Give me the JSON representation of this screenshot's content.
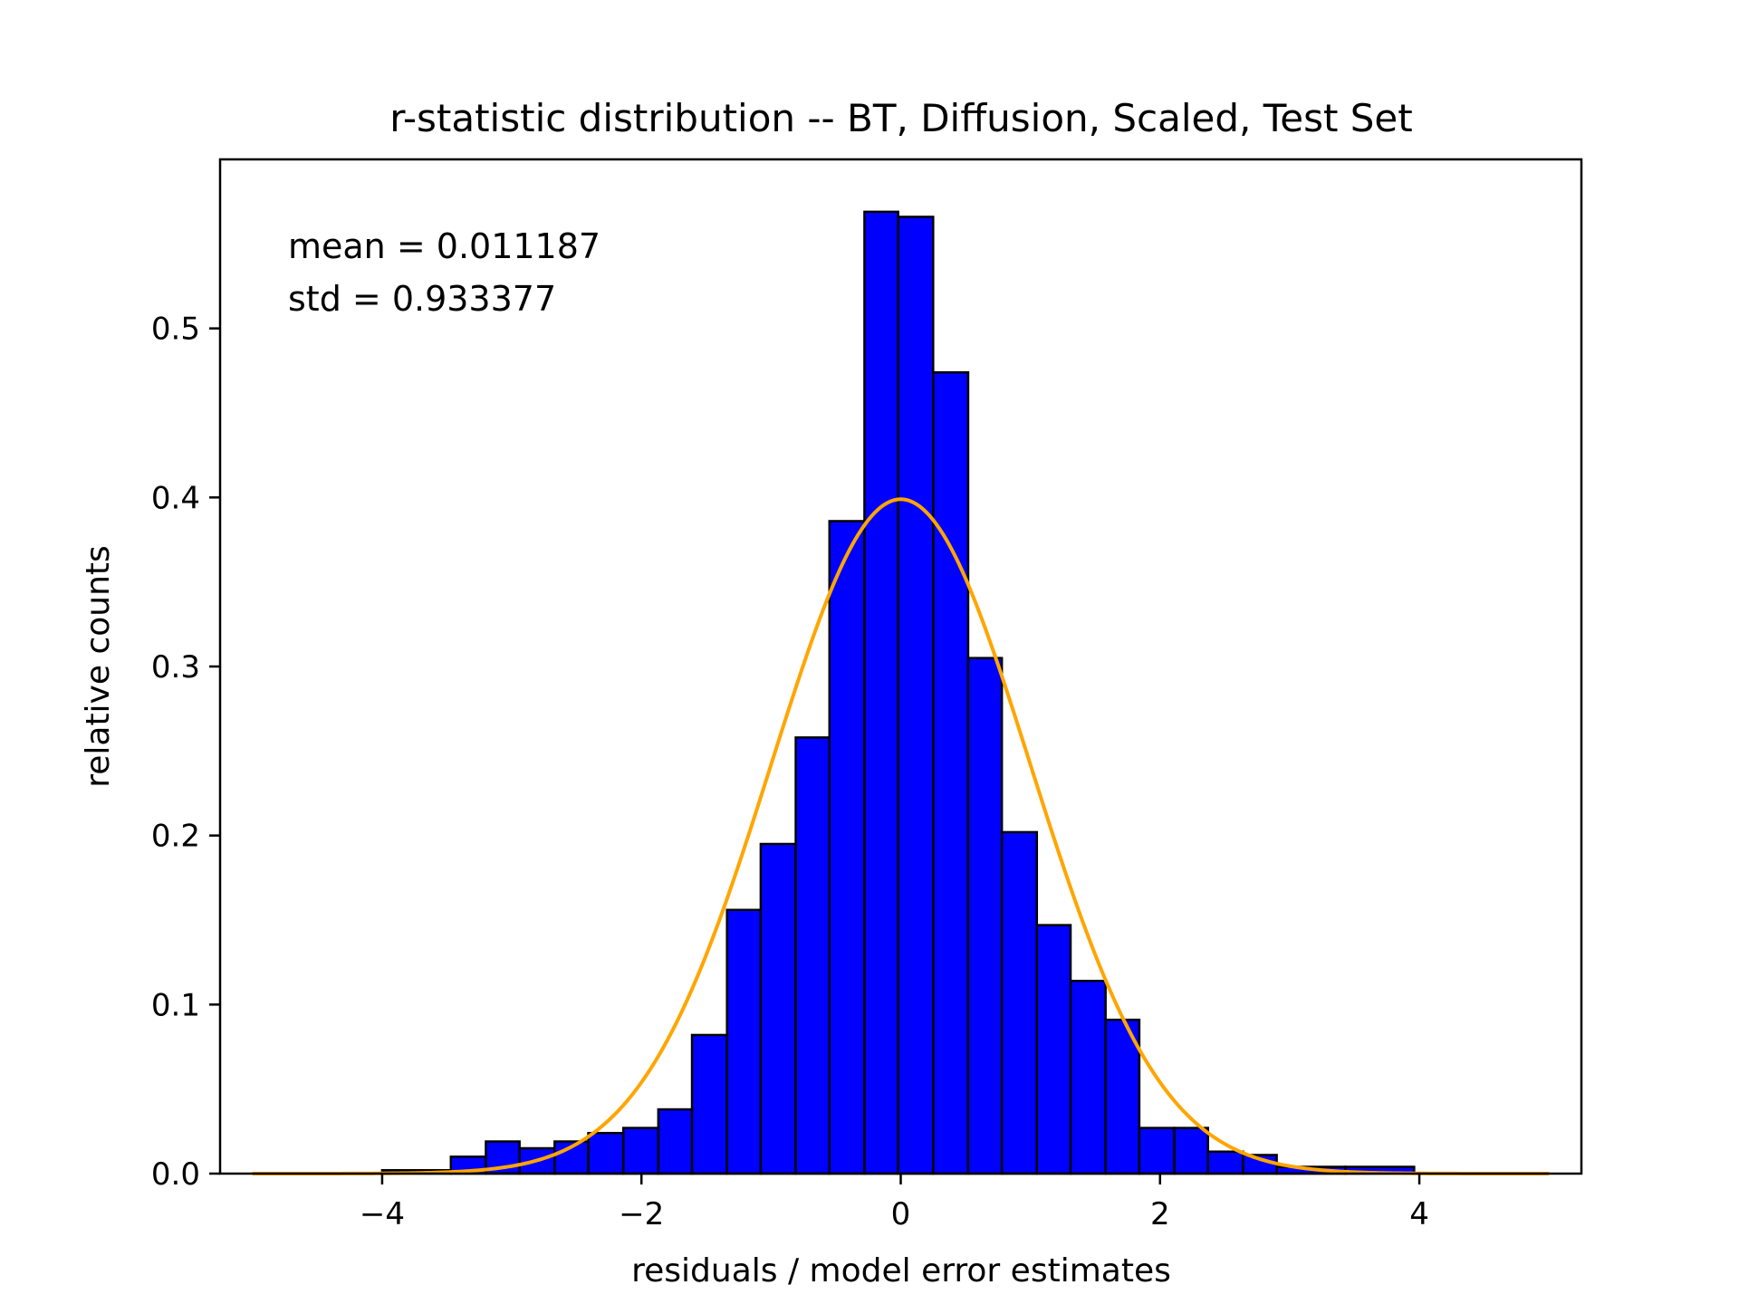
{
  "chart_data": {
    "type": "bar",
    "title": "r-statistic distribution -- BT, Diffusion, Scaled, Test Set",
    "xlabel": "residuals / model error estimates",
    "ylabel": "relative counts",
    "xlim": [
      -5.25,
      5.25
    ],
    "ylim": [
      0.0,
      0.6
    ],
    "xticks": [
      -4,
      -2,
      0,
      2,
      4
    ],
    "xtick_labels": [
      "−4",
      "−2",
      "0",
      "2",
      "4"
    ],
    "yticks": [
      0.0,
      0.1,
      0.2,
      0.3,
      0.4,
      0.5
    ],
    "ytick_labels": [
      "0.0",
      "0.1",
      "0.2",
      "0.3",
      "0.4",
      "0.5"
    ],
    "bins": [
      {
        "x0": -4.0,
        "x1": -3.47,
        "value": 0.002
      },
      {
        "x0": -3.47,
        "x1": -3.2,
        "value": 0.01
      },
      {
        "x0": -3.2,
        "x1": -2.94,
        "value": 0.019
      },
      {
        "x0": -2.94,
        "x1": -2.67,
        "value": 0.015
      },
      {
        "x0": -2.67,
        "x1": -2.41,
        "value": 0.019
      },
      {
        "x0": -2.41,
        "x1": -2.14,
        "value": 0.024
      },
      {
        "x0": -2.14,
        "x1": -1.87,
        "value": 0.027
      },
      {
        "x0": -1.87,
        "x1": -1.61,
        "value": 0.038
      },
      {
        "x0": -1.61,
        "x1": -1.34,
        "value": 0.082
      },
      {
        "x0": -1.34,
        "x1": -1.08,
        "value": 0.156
      },
      {
        "x0": -1.08,
        "x1": -0.81,
        "value": 0.195
      },
      {
        "x0": -0.81,
        "x1": -0.55,
        "value": 0.258
      },
      {
        "x0": -0.55,
        "x1": -0.28,
        "value": 0.386
      },
      {
        "x0": -0.28,
        "x1": -0.02,
        "value": 0.569
      },
      {
        "x0": -0.02,
        "x1": 0.25,
        "value": 0.566
      },
      {
        "x0": 0.25,
        "x1": 0.52,
        "value": 0.474
      },
      {
        "x0": 0.52,
        "x1": 0.78,
        "value": 0.305
      },
      {
        "x0": 0.78,
        "x1": 1.05,
        "value": 0.202
      },
      {
        "x0": 1.05,
        "x1": 1.31,
        "value": 0.147
      },
      {
        "x0": 1.31,
        "x1": 1.58,
        "value": 0.114
      },
      {
        "x0": 1.58,
        "x1": 1.84,
        "value": 0.091
      },
      {
        "x0": 1.84,
        "x1": 2.11,
        "value": 0.027
      },
      {
        "x0": 2.11,
        "x1": 2.37,
        "value": 0.027
      },
      {
        "x0": 2.37,
        "x1": 2.64,
        "value": 0.013
      },
      {
        "x0": 2.64,
        "x1": 2.9,
        "value": 0.011
      },
      {
        "x0": 2.9,
        "x1": 3.43,
        "value": 0.004
      },
      {
        "x0": 3.43,
        "x1": 3.96,
        "value": 0.004
      }
    ],
    "curve": {
      "name": "standard normal pdf",
      "mean": 0,
      "std": 1,
      "x_range": [
        -5,
        5
      ],
      "color": "#FFA500"
    },
    "bar_color": "#0000FF",
    "bar_edge_color": "#000000",
    "annotations": {
      "mean": "mean = 0.011187",
      "std": "std = 0.933377"
    }
  }
}
